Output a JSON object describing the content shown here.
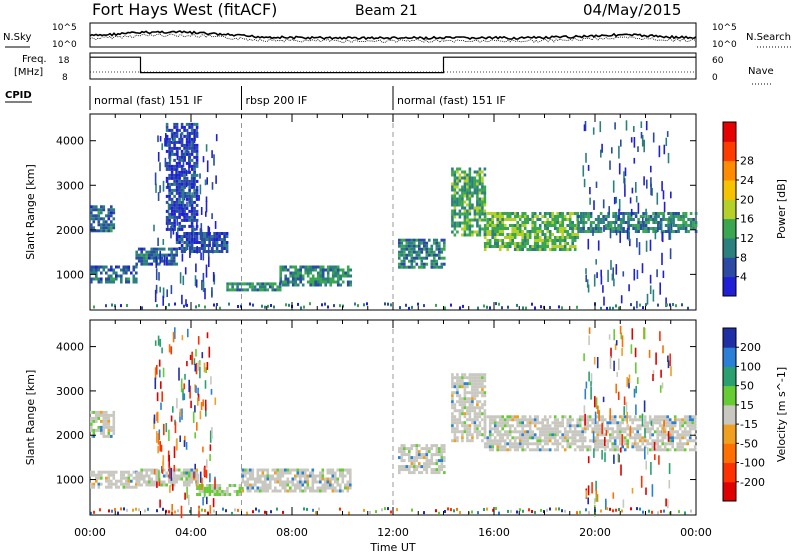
{
  "header": {
    "station": "Fort Hays West (fitACF)",
    "beam": "Beam 21",
    "date": "04/May/2015"
  },
  "noise_panel": {
    "left_label": "N.Sky",
    "right_label": "N.Search",
    "left_ticks": [
      "10^5",
      "10^0"
    ],
    "right_ticks": [
      "10^5",
      "10^0"
    ]
  },
  "freq_panel": {
    "left_label": "Freq.",
    "left_unit": "[MHz]",
    "left_ticks": [
      "18",
      "8"
    ],
    "right_label": "Nave",
    "right_ticks": [
      "60",
      "0"
    ]
  },
  "cpid_panel": {
    "label": "CPID",
    "segments": [
      {
        "start_h": 0,
        "end_h": 6,
        "text": "normal (fast) 151 IF"
      },
      {
        "start_h": 6,
        "end_h": 12,
        "text": "rbsp 200 IF"
      },
      {
        "start_h": 12,
        "end_h": 24,
        "text": "normal (fast) 151 IF"
      }
    ],
    "freq_step": [
      {
        "start_h": 0,
        "end_h": 2,
        "mhz": 17
      },
      {
        "start_h": 2,
        "end_h": 14,
        "mhz": 10
      },
      {
        "start_h": 14,
        "end_h": 24,
        "mhz": 17
      }
    ]
  },
  "chart_data": [
    {
      "type": "heatmap",
      "title": "",
      "xlabel": "Time UT",
      "ylabel": "Slant Range [km]",
      "x_ticks": [
        "00:00",
        "04:00",
        "08:00",
        "12:00",
        "16:00",
        "20:00",
        "00:00"
      ],
      "xlim_hours": [
        0,
        24
      ],
      "y_ticks": [
        1000,
        2000,
        3000,
        4000
      ],
      "ylim_km": [
        200,
        4600
      ],
      "colorbar": {
        "label": "Power [dB]",
        "ticks": [
          4,
          8,
          12,
          16,
          20,
          24,
          28
        ],
        "colors": [
          "#1f1fd6",
          "#2a4aa3",
          "#2c7f7f",
          "#3aa64f",
          "#b5d026",
          "#f5c300",
          "#ff8c00",
          "#ff3b00",
          "#e60000"
        ]
      },
      "echo_regions": [
        {
          "t": [
            0.0,
            0.9
          ],
          "range": [
            2000,
            2550
          ],
          "level": 0.3
        },
        {
          "t": [
            0.0,
            1.8
          ],
          "range": [
            820,
            1200
          ],
          "level": 0.3
        },
        {
          "t": [
            1.8,
            3.4
          ],
          "range": [
            1250,
            1600
          ],
          "level": 0.3
        },
        {
          "t": [
            3.4,
            5.4
          ],
          "range": [
            1500,
            1950
          ],
          "level": 0.2
        },
        {
          "t": [
            3.0,
            4.2
          ],
          "range": [
            2000,
            4400
          ],
          "level": 0.15
        },
        {
          "t": [
            5.4,
            7.5
          ],
          "range": [
            680,
            820
          ],
          "level": 0.45
        },
        {
          "t": [
            7.5,
            10.3
          ],
          "range": [
            780,
            1200
          ],
          "level": 0.45
        },
        {
          "t": [
            12.2,
            14.0
          ],
          "range": [
            1150,
            1800
          ],
          "level": 0.4
        },
        {
          "t": [
            14.3,
            15.6
          ],
          "range": [
            1900,
            3400
          ],
          "level": 0.55
        },
        {
          "t": [
            15.6,
            19.3
          ],
          "range": [
            1550,
            2400
          ],
          "level": 0.65
        },
        {
          "t": [
            19.3,
            24.0
          ],
          "range": [
            1950,
            2400
          ],
          "level": 0.45
        }
      ]
    },
    {
      "type": "heatmap",
      "title": "",
      "xlabel": "Time UT",
      "ylabel": "Slant Range [km]",
      "x_ticks": [
        "00:00",
        "04:00",
        "08:00",
        "12:00",
        "16:00",
        "20:00",
        "00:00"
      ],
      "xlim_hours": [
        0,
        24
      ],
      "y_ticks": [
        1000,
        2000,
        3000,
        4000
      ],
      "ylim_km": [
        200,
        4600
      ],
      "colorbar": {
        "label": "Velocity [m s^-1]",
        "ticks": [
          "200",
          "100",
          "50",
          "15",
          "-15",
          "-50",
          "-100",
          "-200"
        ],
        "colors": [
          "#1f2fa6",
          "#2a7fd6",
          "#2a9f6f",
          "#66cc33",
          "#c8c8c0",
          "#f0a020",
          "#ff7000",
          "#ff3000",
          "#e00000"
        ]
      },
      "echo_regions": [
        {
          "t": [
            0.0,
            0.9
          ],
          "range": [
            2000,
            2550
          ],
          "class": "ground"
        },
        {
          "t": [
            0.0,
            1.8
          ],
          "range": [
            820,
            1200
          ],
          "class": "ground"
        },
        {
          "t": [
            1.8,
            4.2
          ],
          "range": [
            850,
            1250
          ],
          "class": "ground"
        },
        {
          "t": [
            4.2,
            6.0
          ],
          "range": [
            650,
            900
          ],
          "class": "positive"
        },
        {
          "t": [
            6.0,
            10.3
          ],
          "range": [
            750,
            1250
          ],
          "class": "ground"
        },
        {
          "t": [
            12.2,
            14.0
          ],
          "range": [
            1150,
            1800
          ],
          "class": "ground"
        },
        {
          "t": [
            14.3,
            15.6
          ],
          "range": [
            1900,
            3400
          ],
          "class": "ground"
        },
        {
          "t": [
            15.6,
            24.0
          ],
          "range": [
            1700,
            2450
          ],
          "class": "ground"
        }
      ]
    }
  ]
}
